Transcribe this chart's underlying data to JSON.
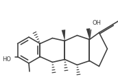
{
  "bg": "#ffffff",
  "lc": "#3d3d3d",
  "lw": 1.15,
  "fs": 6.0,
  "figsize": [
    1.72,
    1.16
  ],
  "dpi": 100
}
